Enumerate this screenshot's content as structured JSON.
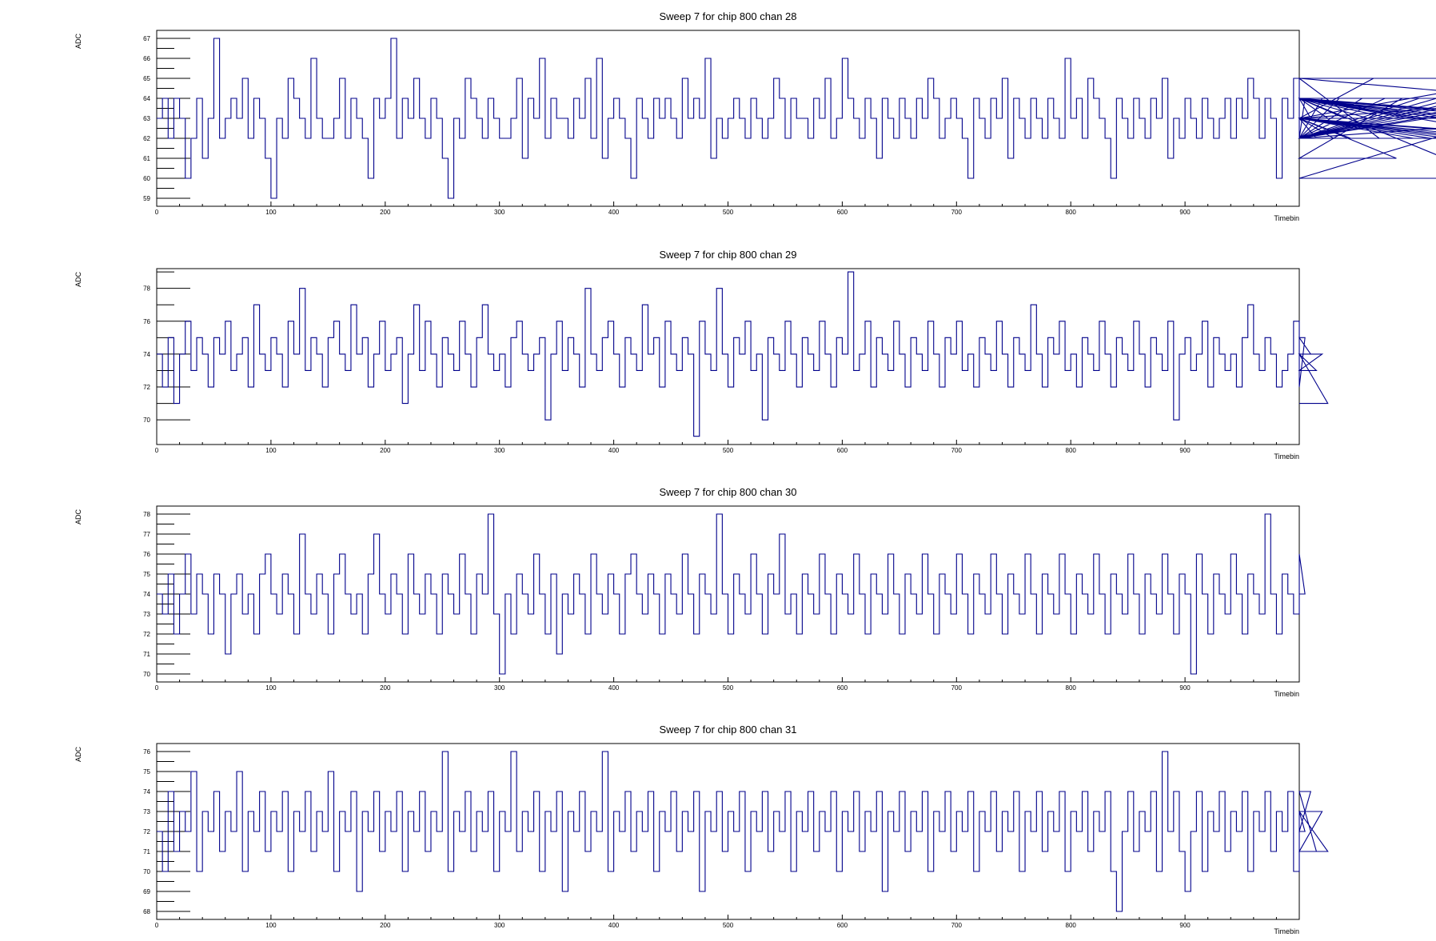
{
  "chart_data": [
    {
      "type": "line",
      "title": "Sweep 7 for chip 800 chan 28",
      "xlabel": "Timebin",
      "ylabel": "ADC",
      "xlim": [
        0,
        1000
      ],
      "ylim": [
        58.6,
        67.4
      ],
      "xticks": [
        0,
        100,
        200,
        300,
        400,
        500,
        600,
        700,
        800,
        900
      ],
      "yticks": [
        59,
        60,
        61,
        62,
        63,
        64,
        65,
        66,
        67
      ],
      "grid": false,
      "line_color": "#00008b",
      "series": [
        {
          "x_start": 0,
          "x_step": 5,
          "values": [
            63,
            64,
            62,
            64,
            63,
            60,
            62,
            64,
            61,
            63,
            67,
            62,
            63,
            64,
            63,
            65,
            62,
            64,
            63,
            61,
            59,
            63,
            62,
            65,
            64,
            63,
            62,
            66,
            63,
            62,
            62,
            63,
            65,
            62,
            64,
            63,
            62,
            60,
            64,
            63,
            64,
            67,
            62,
            64,
            63,
            65,
            63,
            62,
            64,
            63,
            61,
            59,
            63,
            62,
            65,
            64,
            63,
            62,
            64,
            63,
            62,
            62,
            63,
            65,
            61,
            64,
            63,
            66,
            62,
            64,
            63,
            63,
            62,
            64,
            63,
            65,
            62,
            66,
            61,
            63,
            64,
            63,
            62,
            60,
            64,
            63,
            62,
            64,
            63,
            64,
            63,
            62,
            65,
            63,
            64,
            63,
            66,
            61,
            63,
            62,
            63,
            64,
            63,
            62,
            64,
            63,
            62,
            63,
            65,
            64,
            62,
            64,
            63,
            63,
            62,
            64,
            63,
            65,
            62,
            63,
            66,
            64,
            63,
            62,
            64,
            63,
            61,
            64,
            63,
            62,
            64,
            63,
            62,
            64,
            63,
            65,
            64,
            62,
            63,
            64,
            63,
            62,
            60,
            64,
            63,
            62,
            64,
            63,
            65,
            61,
            64,
            63,
            62,
            64,
            63,
            62,
            64,
            63,
            62,
            66,
            63,
            64,
            62,
            65,
            64,
            63,
            62,
            60,
            64,
            63,
            62,
            64,
            63,
            62,
            64,
            63,
            65,
            61,
            63,
            62,
            64,
            63,
            62,
            64,
            63,
            62,
            63,
            64,
            62,
            64,
            63,
            65,
            64,
            62,
            64,
            63,
            60,
            64,
            63,
            65,
            62,
            64,
            63,
            62,
            64,
            63,
            62,
            64,
            63,
            62,
            62,
            64,
            63,
            65,
            62,
            64,
            63,
            61,
            64,
            63,
            62,
            64,
            63,
            62,
            64,
            63,
            62,
            64,
            63,
            62,
            64,
            63,
            62,
            64,
            60,
            63,
            62,
            64,
            63,
            65,
            64,
            62,
            64,
            63,
            62,
            64,
            63,
            62,
            63,
            64,
            62,
            62
          ]
        }
      ]
    },
    {
      "type": "line",
      "title": "Sweep 7 for chip 800 chan 29",
      "xlabel": "Timebin",
      "ylabel": "ADC",
      "xlim": [
        0,
        1000
      ],
      "ylim": [
        68.5,
        79.2
      ],
      "xticks": [
        0,
        100,
        200,
        300,
        400,
        500,
        600,
        700,
        800,
        900
      ],
      "yticks": [
        70,
        72,
        74,
        76,
        78
      ],
      "grid": false,
      "line_color": "#00008b",
      "series": [
        {
          "x_start": 0,
          "x_step": 5,
          "values": [
            74,
            72,
            75,
            71,
            74,
            76,
            73,
            75,
            74,
            72,
            75,
            74,
            76,
            73,
            74,
            75,
            72,
            77,
            74,
            73,
            75,
            74,
            72,
            76,
            74,
            78,
            73,
            75,
            74,
            72,
            75,
            76,
            74,
            73,
            77,
            74,
            75,
            72,
            74,
            76,
            73,
            74,
            75,
            71,
            74,
            77,
            73,
            76,
            74,
            72,
            75,
            74,
            73,
            76,
            74,
            72,
            75,
            77,
            74,
            73,
            74,
            72,
            75,
            76,
            74,
            73,
            74,
            75,
            70,
            74,
            76,
            73,
            75,
            74,
            72,
            78,
            74,
            73,
            75,
            76,
            74,
            72,
            75,
            74,
            73,
            77,
            74,
            75,
            72,
            76,
            74,
            73,
            75,
            74,
            69,
            76,
            74,
            73,
            78,
            74,
            72,
            75,
            74,
            76,
            73,
            74,
            70,
            75,
            74,
            73,
            76,
            74,
            72,
            75,
            74,
            73,
            76,
            74,
            72,
            75,
            74,
            79,
            73,
            74,
            76,
            72,
            75,
            74,
            73,
            76,
            74,
            72,
            75,
            74,
            73,
            76,
            74,
            72,
            75,
            74,
            76,
            73,
            74,
            72,
            75,
            74,
            73,
            76,
            74,
            72,
            75,
            74,
            73,
            77,
            74,
            72,
            75,
            74,
            76,
            73,
            74,
            72,
            75,
            74,
            73,
            76,
            74,
            72,
            75,
            74,
            73,
            76,
            74,
            72,
            75,
            74,
            73,
            76,
            70,
            74,
            75,
            73,
            74,
            76,
            72,
            75,
            74,
            73,
            74,
            72,
            75,
            77,
            74,
            73,
            75,
            74,
            72,
            73,
            74,
            76,
            72,
            75,
            74,
            73,
            74,
            71
          ]
        }
      ]
    },
    {
      "type": "line",
      "title": "Sweep 7 for chip 800 chan 30",
      "xlabel": "Timebin",
      "ylabel": "ADC",
      "xlim": [
        0,
        1000
      ],
      "ylim": [
        69.6,
        78.4
      ],
      "xticks": [
        0,
        100,
        200,
        300,
        400,
        500,
        600,
        700,
        800,
        900
      ],
      "yticks": [
        70,
        71,
        72,
        73,
        74,
        75,
        76,
        77,
        78
      ],
      "grid": false,
      "line_color": "#00008b",
      "series": [
        {
          "x_start": 0,
          "x_step": 5,
          "values": [
            74,
            73,
            75,
            72,
            74,
            76,
            73,
            75,
            74,
            72,
            75,
            74,
            71,
            74,
            75,
            73,
            74,
            72,
            75,
            76,
            74,
            73,
            75,
            74,
            72,
            77,
            74,
            73,
            75,
            74,
            72,
            75,
            76,
            74,
            73,
            74,
            72,
            75,
            77,
            74,
            73,
            75,
            74,
            72,
            76,
            74,
            73,
            75,
            74,
            72,
            75,
            74,
            73,
            76,
            74,
            72,
            75,
            74,
            78,
            73,
            70,
            74,
            72,
            75,
            74,
            73,
            76,
            74,
            72,
            75,
            71,
            74,
            73,
            75,
            74,
            72,
            76,
            74,
            73,
            75,
            74,
            72,
            75,
            76,
            74,
            73,
            75,
            74,
            72,
            75,
            74,
            73,
            76,
            74,
            72,
            75,
            74,
            73,
            78,
            74,
            72,
            75,
            74,
            73,
            76,
            74,
            72,
            75,
            74,
            77,
            73,
            74,
            72,
            75,
            74,
            73,
            76,
            74,
            72,
            75,
            74,
            73,
            76,
            74,
            72,
            75,
            74,
            73,
            76,
            74,
            72,
            75,
            74,
            73,
            76,
            74,
            72,
            75,
            74,
            73,
            76,
            74,
            72,
            75,
            74,
            73,
            76,
            74,
            72,
            75,
            74,
            73,
            76,
            74,
            72,
            75,
            74,
            73,
            76,
            74,
            72,
            75,
            74,
            73,
            76,
            74,
            72,
            75,
            74,
            73,
            76,
            74,
            72,
            75,
            74,
            73,
            76,
            74,
            72,
            75,
            74,
            70,
            76,
            74,
            72,
            75,
            74,
            73,
            76,
            74,
            72,
            75,
            74,
            73,
            78,
            74,
            72,
            75,
            74,
            73,
            76,
            74
          ]
        }
      ]
    },
    {
      "type": "line",
      "title": "Sweep 7 for chip 800 chan 31",
      "xlabel": "Timebin",
      "ylabel": "ADC",
      "xlim": [
        0,
        1000
      ],
      "ylim": [
        67.6,
        76.4
      ],
      "xticks": [
        0,
        100,
        200,
        300,
        400,
        500,
        600,
        700,
        800,
        900
      ],
      "yticks": [
        68,
        69,
        70,
        71,
        72,
        73,
        74,
        75,
        76
      ],
      "grid": false,
      "line_color": "#00008b",
      "series": [
        {
          "x_start": 0,
          "x_step": 5,
          "values": [
            72,
            70,
            74,
            71,
            73,
            72,
            75,
            70,
            73,
            72,
            74,
            71,
            73,
            72,
            75,
            70,
            73,
            72,
            74,
            71,
            73,
            72,
            74,
            70,
            73,
            72,
            74,
            71,
            73,
            72,
            75,
            70,
            73,
            72,
            74,
            69,
            73,
            72,
            74,
            71,
            73,
            72,
            74,
            70,
            73,
            72,
            74,
            71,
            73,
            72,
            76,
            70,
            73,
            72,
            74,
            71,
            73,
            72,
            74,
            70,
            73,
            72,
            76,
            71,
            73,
            72,
            74,
            70,
            73,
            72,
            74,
            69,
            73,
            72,
            74,
            71,
            73,
            72,
            76,
            70,
            73,
            72,
            74,
            71,
            73,
            72,
            74,
            70,
            73,
            72,
            74,
            71,
            73,
            72,
            74,
            69,
            73,
            72,
            74,
            71,
            73,
            72,
            74,
            70,
            73,
            72,
            74,
            71,
            73,
            72,
            74,
            70,
            73,
            72,
            74,
            71,
            73,
            72,
            74,
            70,
            73,
            72,
            74,
            71,
            73,
            72,
            74,
            69,
            73,
            72,
            74,
            71,
            73,
            72,
            74,
            70,
            73,
            72,
            74,
            71,
            73,
            72,
            74,
            70,
            73,
            72,
            74,
            71,
            73,
            72,
            74,
            70,
            73,
            72,
            74,
            71,
            73,
            72,
            74,
            70,
            73,
            72,
            74,
            71,
            73,
            72,
            74,
            70,
            68,
            72,
            74,
            71,
            73,
            72,
            74,
            70,
            76,
            72,
            74,
            71,
            69,
            72,
            74,
            70,
            73,
            72,
            74,
            71,
            73,
            72,
            74,
            70,
            73,
            72,
            74,
            71,
            73,
            72,
            74,
            70,
            73,
            72,
            74,
            71,
            73,
            71
          ]
        }
      ]
    }
  ]
}
